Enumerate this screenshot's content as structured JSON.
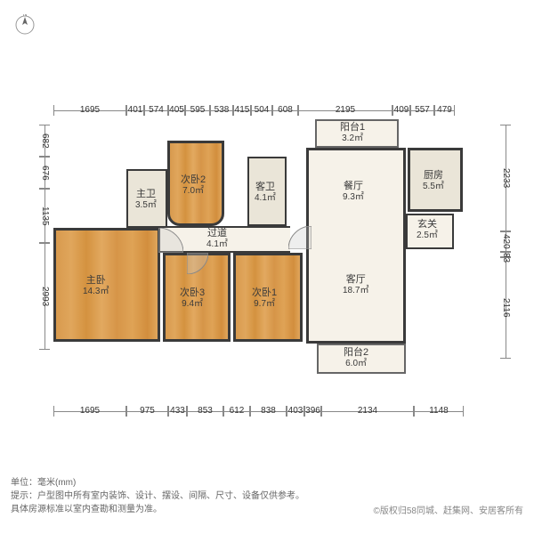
{
  "compass": {
    "label": "N"
  },
  "dims_top": [
    {
      "v": "1695",
      "w": 82
    },
    {
      "v": "401",
      "w": 20
    },
    {
      "v": "574",
      "w": 27
    },
    {
      "v": "405",
      "w": 19
    },
    {
      "v": "595",
      "w": 28
    },
    {
      "v": "538",
      "w": 26
    },
    {
      "v": "415",
      "w": 20
    },
    {
      "v": "504",
      "w": 24
    },
    {
      "v": "608",
      "w": 29
    },
    {
      "v": "2195",
      "w": 106
    },
    {
      "v": "409",
      "w": 20
    },
    {
      "v": "557",
      "w": 27
    },
    {
      "v": "479",
      "w": 23
    }
  ],
  "dims_bottom": [
    {
      "v": "1695",
      "w": 82
    },
    {
      "v": "975",
      "w": 47
    },
    {
      "v": "433",
      "w": 21
    },
    {
      "v": "853",
      "w": 41
    },
    {
      "v": "612",
      "w": 30
    },
    {
      "v": "838",
      "w": 41
    },
    {
      "v": "403",
      "w": 20
    },
    {
      "v": "396",
      "w": 19
    },
    {
      "v": "2134",
      "w": 104
    },
    {
      "v": "1148",
      "w": 56
    }
  ],
  "dims_left": [
    {
      "v": "682",
      "h": 36
    },
    {
      "v": "676",
      "h": 36
    },
    {
      "v": "1135",
      "h": 61
    },
    {
      "v": "2993",
      "h": 120
    }
  ],
  "dims_right": [
    {
      "v": "2233",
      "h": 120
    },
    {
      "v": "420",
      "h": 23
    },
    {
      "v": "83",
      "h": 6
    },
    {
      "v": "2116",
      "h": 114
    }
  ],
  "rooms": {
    "master": {
      "name": "主卧",
      "area": "14.3㎡"
    },
    "bed2": {
      "name": "次卧2",
      "area": "7.0㎡"
    },
    "bed3": {
      "name": "次卧3",
      "area": "9.4㎡"
    },
    "bed1": {
      "name": "次卧1",
      "area": "9.7㎡"
    },
    "mbath": {
      "name": "主卫",
      "area": "3.5㎡"
    },
    "gbath": {
      "name": "客卫",
      "area": "4.1㎡"
    },
    "hall": {
      "name": "过道",
      "area": "4.1㎡"
    },
    "dining": {
      "name": "餐厅",
      "area": "9.3㎡"
    },
    "living": {
      "name": "客厅",
      "area": "18.7㎡"
    },
    "kitchen": {
      "name": "厨房",
      "area": "5.5㎡"
    },
    "foyer": {
      "name": "玄关",
      "area": "2.5㎡"
    },
    "balc1": {
      "name": "阳台1",
      "area": "3.2㎡"
    },
    "balc2": {
      "name": "阳台2",
      "area": "6.0㎡"
    }
  },
  "footer": {
    "unit": "单位：毫米(mm)",
    "note": "提示：户型图中所有室内装饰、设计、摆设、间隔、尺寸、设备仅供参考。",
    "note2": "具体房源标准以室内查勘和测量为准。"
  },
  "copyright": "©版权归58同城、赶集网、安居客所有",
  "colors": {
    "wall": "#3a3a3a",
    "wood": "#d89a4e",
    "tile": "#eae5d8",
    "bg": "#ffffff"
  }
}
